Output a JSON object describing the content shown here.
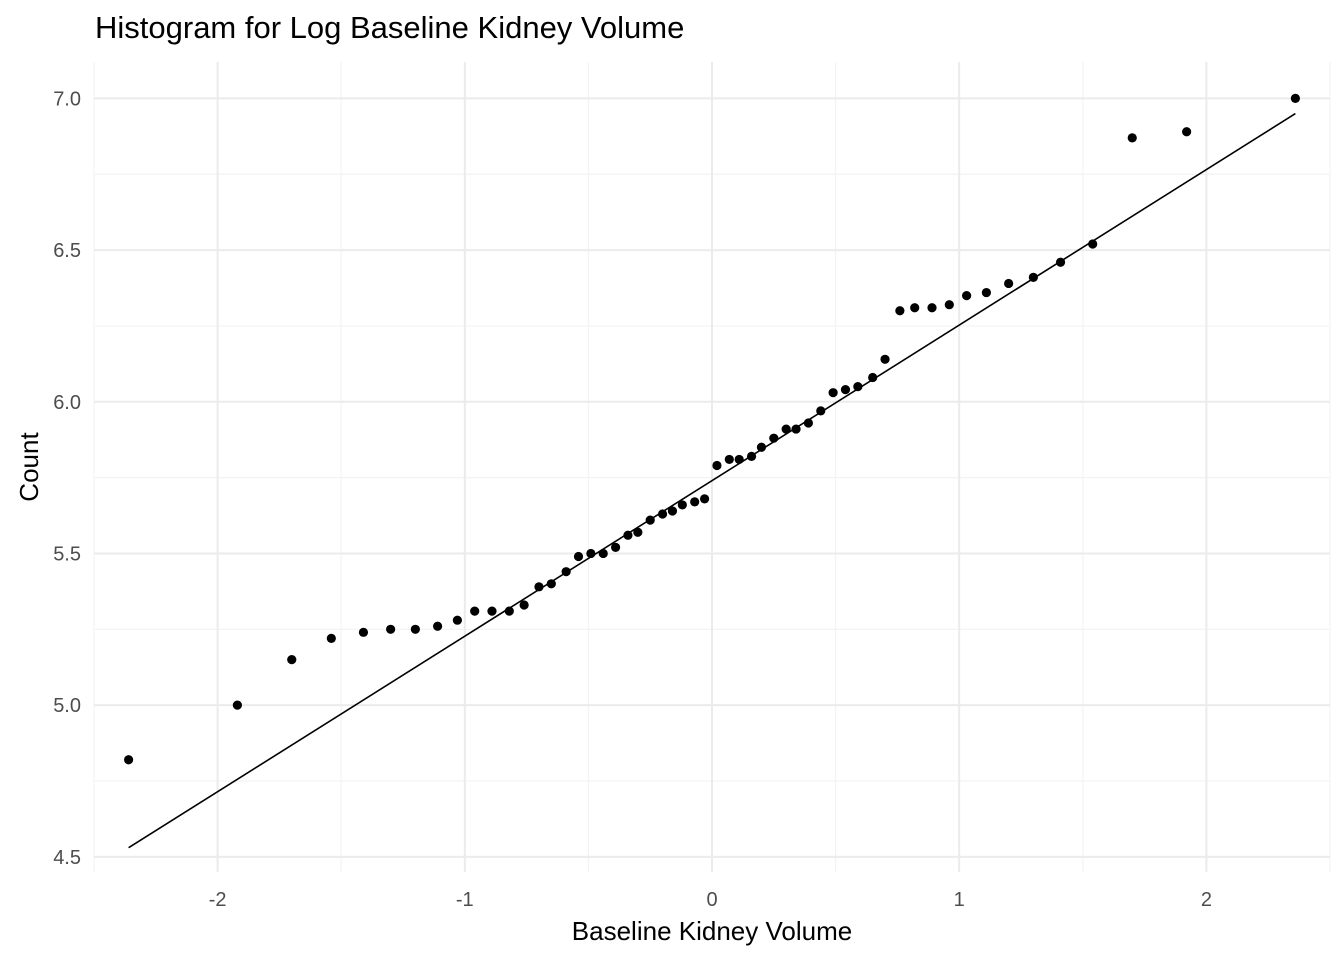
{
  "chart_data": {
    "type": "scatter",
    "title": "Histogram for Log Baseline Kidney Volume",
    "xlabel": "Baseline Kidney Volume",
    "ylabel": "Count",
    "xlim": [
      -2.5,
      2.5
    ],
    "ylim": [
      4.45,
      7.12
    ],
    "x_ticks": [
      -2,
      -1,
      0,
      1,
      2
    ],
    "x_tick_labels": [
      "-2",
      "-1",
      "0",
      "1",
      "2"
    ],
    "y_ticks": [
      4.5,
      5.0,
      5.5,
      6.0,
      6.5,
      7.0
    ],
    "y_tick_labels": [
      "4.5",
      "5.0",
      "5.5",
      "6.0",
      "6.5",
      "7.0"
    ],
    "grid": true,
    "legend": "none",
    "point_color": "#000000",
    "line_color": "#000000",
    "reference_line": {
      "x": [
        -2.36,
        2.36
      ],
      "y": [
        4.53,
        6.95
      ]
    },
    "points": [
      {
        "x": -2.36,
        "y": 4.82
      },
      {
        "x": -1.92,
        "y": 5.0
      },
      {
        "x": -1.7,
        "y": 5.15
      },
      {
        "x": -1.54,
        "y": 5.22
      },
      {
        "x": -1.41,
        "y": 5.24
      },
      {
        "x": -1.3,
        "y": 5.25
      },
      {
        "x": -1.2,
        "y": 5.25
      },
      {
        "x": -1.11,
        "y": 5.26
      },
      {
        "x": -1.03,
        "y": 5.28
      },
      {
        "x": -0.96,
        "y": 5.31
      },
      {
        "x": -0.89,
        "y": 5.31
      },
      {
        "x": -0.82,
        "y": 5.31
      },
      {
        "x": -0.76,
        "y": 5.33
      },
      {
        "x": -0.7,
        "y": 5.39
      },
      {
        "x": -0.65,
        "y": 5.4
      },
      {
        "x": -0.59,
        "y": 5.44
      },
      {
        "x": -0.54,
        "y": 5.49
      },
      {
        "x": -0.49,
        "y": 5.5
      },
      {
        "x": -0.44,
        "y": 5.5
      },
      {
        "x": -0.39,
        "y": 5.52
      },
      {
        "x": -0.34,
        "y": 5.56
      },
      {
        "x": -0.3,
        "y": 5.57
      },
      {
        "x": -0.25,
        "y": 5.61
      },
      {
        "x": -0.2,
        "y": 5.63
      },
      {
        "x": -0.16,
        "y": 5.64
      },
      {
        "x": -0.12,
        "y": 5.66
      },
      {
        "x": -0.07,
        "y": 5.67
      },
      {
        "x": -0.03,
        "y": 5.68
      },
      {
        "x": 0.02,
        "y": 5.79
      },
      {
        "x": 0.07,
        "y": 5.81
      },
      {
        "x": 0.11,
        "y": 5.81
      },
      {
        "x": 0.16,
        "y": 5.82
      },
      {
        "x": 0.2,
        "y": 5.85
      },
      {
        "x": 0.25,
        "y": 5.88
      },
      {
        "x": 0.3,
        "y": 5.91
      },
      {
        "x": 0.34,
        "y": 5.91
      },
      {
        "x": 0.39,
        "y": 5.93
      },
      {
        "x": 0.44,
        "y": 5.97
      },
      {
        "x": 0.49,
        "y": 6.03
      },
      {
        "x": 0.54,
        "y": 6.04
      },
      {
        "x": 0.59,
        "y": 6.05
      },
      {
        "x": 0.65,
        "y": 6.08
      },
      {
        "x": 0.7,
        "y": 6.14
      },
      {
        "x": 0.76,
        "y": 6.3
      },
      {
        "x": 0.82,
        "y": 6.31
      },
      {
        "x": 0.89,
        "y": 6.31
      },
      {
        "x": 0.96,
        "y": 6.32
      },
      {
        "x": 1.03,
        "y": 6.35
      },
      {
        "x": 1.11,
        "y": 6.36
      },
      {
        "x": 1.2,
        "y": 6.39
      },
      {
        "x": 1.3,
        "y": 6.41
      },
      {
        "x": 1.41,
        "y": 6.46
      },
      {
        "x": 1.54,
        "y": 6.52
      },
      {
        "x": 1.7,
        "y": 6.87
      },
      {
        "x": 1.92,
        "y": 6.89
      },
      {
        "x": 2.36,
        "y": 7.0
      }
    ]
  }
}
